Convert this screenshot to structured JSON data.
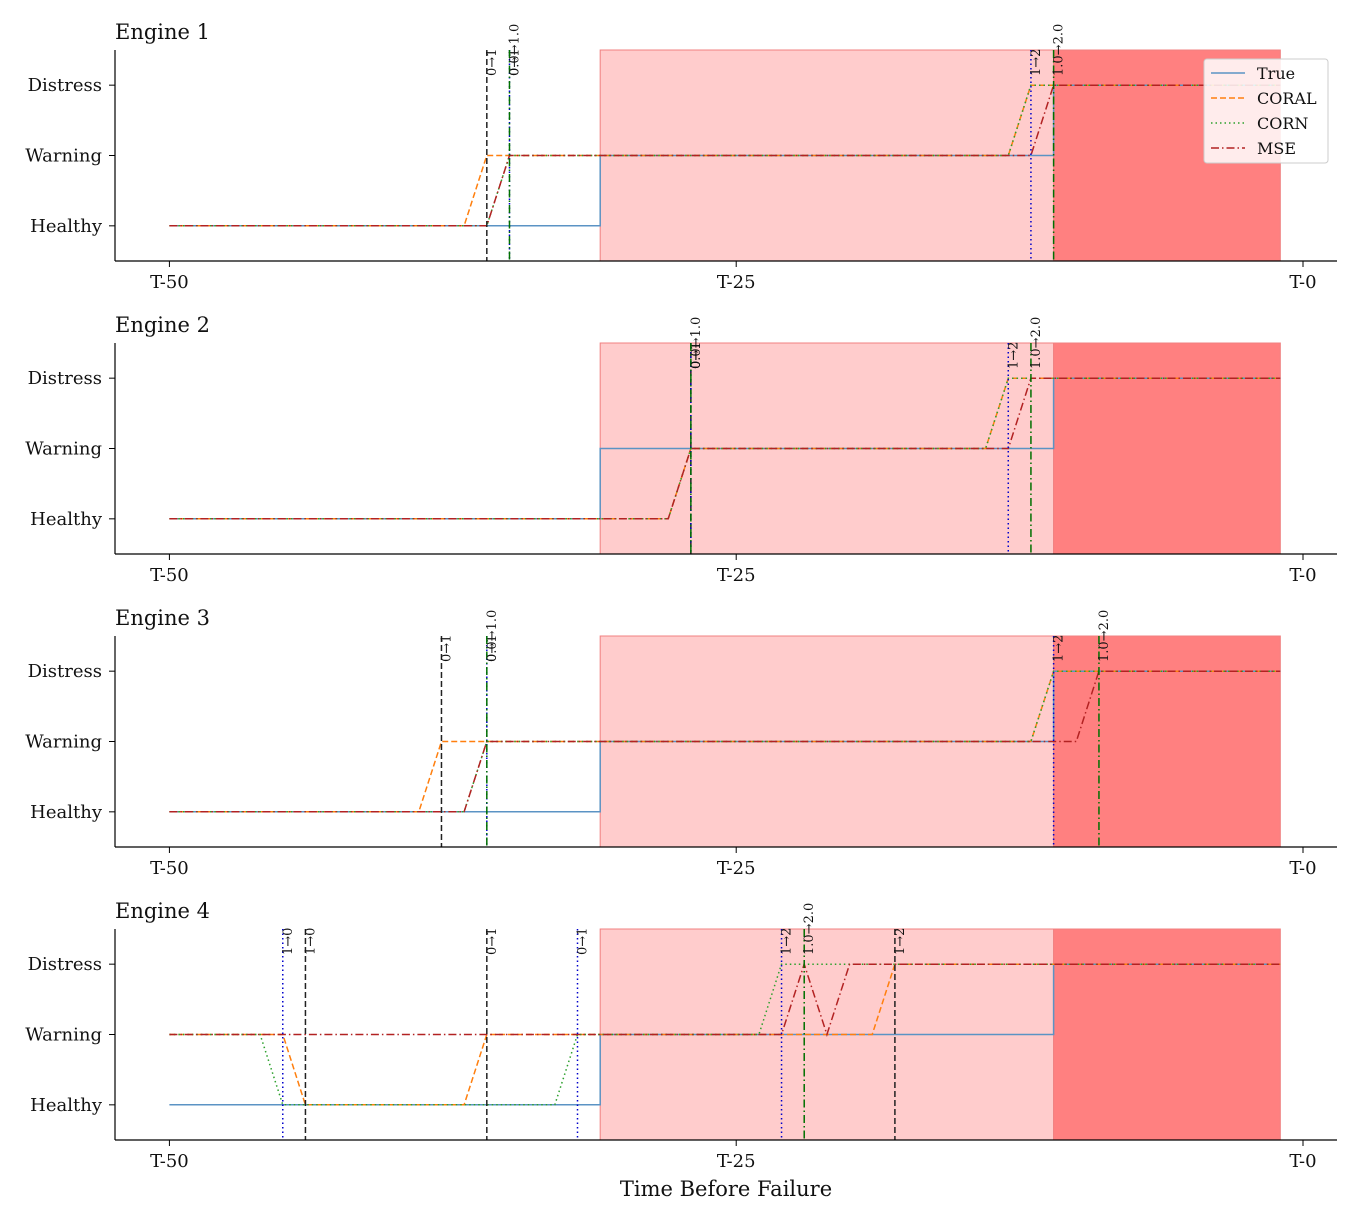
{
  "chart_data": [
    {
      "type": "line",
      "title": "Engine 1",
      "xlim": [
        -52.4,
        1.5
      ],
      "xticks": [
        {
          "value": -50,
          "label": "T-50"
        },
        {
          "value": -25,
          "label": "T-25"
        },
        {
          "value": 0,
          "label": "T-0"
        }
      ],
      "ylim": [
        -0.5,
        2.5
      ],
      "yticks": [
        {
          "value": 0,
          "label": "Healthy"
        },
        {
          "value": 1,
          "label": "Warning"
        },
        {
          "value": 2,
          "label": "Distress"
        }
      ],
      "regions": [
        {
          "x0": -31,
          "x1": -11,
          "color": "#ffcccc"
        },
        {
          "x0": -11,
          "x1": -1,
          "color": "#ff8080"
        }
      ],
      "series": [
        {
          "name": "True",
          "color": "#5b93c4",
          "dash": "solid",
          "x": [
            -50,
            -31,
            -31,
            -11,
            -11,
            -1
          ],
          "values": [
            0,
            0,
            1,
            1,
            2,
            2
          ]
        },
        {
          "name": "CORAL",
          "color": "#ff7f0e",
          "dash": "dashed",
          "x": [
            -50,
            -37,
            -36,
            -13,
            -12,
            -1
          ],
          "values": [
            0,
            0,
            1,
            1,
            2,
            2
          ]
        },
        {
          "name": "CORN",
          "color": "#2ca02c",
          "dash": "dotted",
          "x": [
            -50,
            -36,
            -35,
            -13,
            -12,
            -1
          ],
          "values": [
            0,
            0,
            1,
            1,
            2,
            2
          ]
        },
        {
          "name": "MSE",
          "color": "#b22222",
          "dash": "dashdot",
          "x": [
            -50,
            -36,
            -35,
            -12,
            -11,
            -1
          ],
          "values": [
            0,
            0,
            1,
            1,
            2,
            2
          ]
        }
      ],
      "markers": [
        {
          "x": -36,
          "label": "0→1",
          "color": "#222222",
          "dash": "dashed"
        },
        {
          "x": -35,
          "label": "0→1",
          "color": "#0000cc",
          "dash": "dotted"
        },
        {
          "x": -35,
          "label": "0.0→1.0",
          "color": "#007000",
          "dash": "dashdot"
        },
        {
          "x": -12,
          "label": "1→2",
          "color": "#0000cc",
          "dash": "dotted"
        },
        {
          "x": -11,
          "label": "1.0→2.0",
          "color": "#007000",
          "dash": "dashdot"
        }
      ],
      "legend": "upper right"
    },
    {
      "type": "line",
      "title": "Engine 2",
      "xlim": [
        -52.4,
        1.5
      ],
      "xticks": [
        {
          "value": -50,
          "label": "T-50"
        },
        {
          "value": -25,
          "label": "T-25"
        },
        {
          "value": 0,
          "label": "T-0"
        }
      ],
      "ylim": [
        -0.5,
        2.5
      ],
      "yticks": [
        {
          "value": 0,
          "label": "Healthy"
        },
        {
          "value": 1,
          "label": "Warning"
        },
        {
          "value": 2,
          "label": "Distress"
        }
      ],
      "regions": [
        {
          "x0": -31,
          "x1": -11,
          "color": "#ffcccc"
        },
        {
          "x0": -11,
          "x1": -1,
          "color": "#ff8080"
        }
      ],
      "series": [
        {
          "color": "#5b93c4",
          "dash": "solid",
          "x": [
            -50,
            -31,
            -31,
            -11,
            -11,
            -1
          ],
          "values": [
            0,
            0,
            1,
            1,
            2,
            2
          ]
        },
        {
          "color": "#ff7f0e",
          "dash": "dashed",
          "x": [
            -50,
            -28,
            -27,
            -14,
            -13,
            -1
          ],
          "values": [
            0,
            0,
            1,
            1,
            2,
            2
          ]
        },
        {
          "color": "#2ca02c",
          "dash": "dotted",
          "x": [
            -50,
            -28,
            -27,
            -14,
            -13,
            -1
          ],
          "values": [
            0,
            0,
            1,
            1,
            2,
            2
          ]
        },
        {
          "color": "#b22222",
          "dash": "dashdot",
          "x": [
            -50,
            -28,
            -27,
            -13,
            -12,
            -1
          ],
          "values": [
            0,
            0,
            1,
            1,
            2,
            2
          ]
        }
      ],
      "markers": [
        {
          "x": -27,
          "label": "0→1",
          "color": "#222222",
          "dash": "dashed"
        },
        {
          "x": -27,
          "label": "0→1",
          "color": "#0000cc",
          "dash": "dotted"
        },
        {
          "x": -27,
          "label": "0.0→1.0",
          "color": "#007000",
          "dash": "dashdot"
        },
        {
          "x": -13,
          "label": "1→2",
          "color": "#0000cc",
          "dash": "dotted"
        },
        {
          "x": -12,
          "label": "1.0→2.0",
          "color": "#007000",
          "dash": "dashdot"
        }
      ]
    },
    {
      "type": "line",
      "title": "Engine 3",
      "xlim": [
        -52.4,
        1.5
      ],
      "xticks": [
        {
          "value": -50,
          "label": "T-50"
        },
        {
          "value": -25,
          "label": "T-25"
        },
        {
          "value": 0,
          "label": "T-0"
        }
      ],
      "ylim": [
        -0.5,
        2.5
      ],
      "yticks": [
        {
          "value": 0,
          "label": "Healthy"
        },
        {
          "value": 1,
          "label": "Warning"
        },
        {
          "value": 2,
          "label": "Distress"
        }
      ],
      "regions": [
        {
          "x0": -31,
          "x1": -11,
          "color": "#ffcccc"
        },
        {
          "x0": -11,
          "x1": -1,
          "color": "#ff8080"
        }
      ],
      "series": [
        {
          "color": "#5b93c4",
          "dash": "solid",
          "x": [
            -50,
            -31,
            -31,
            -11,
            -11,
            -1
          ],
          "values": [
            0,
            0,
            1,
            1,
            2,
            2
          ]
        },
        {
          "color": "#ff7f0e",
          "dash": "dashed",
          "x": [
            -50,
            -39,
            -38,
            -12,
            -11,
            -1
          ],
          "values": [
            0,
            0,
            1,
            1,
            2,
            2
          ]
        },
        {
          "color": "#2ca02c",
          "dash": "dotted",
          "x": [
            -50,
            -37,
            -36,
            -12,
            -11,
            -1
          ],
          "values": [
            0,
            0,
            1,
            1,
            2,
            2
          ]
        },
        {
          "color": "#b22222",
          "dash": "dashdot",
          "x": [
            -50,
            -37,
            -36,
            -10,
            -9,
            -1
          ],
          "values": [
            0,
            0,
            1,
            1,
            2,
            2
          ]
        }
      ],
      "markers": [
        {
          "x": -38,
          "label": "0→1",
          "color": "#222222",
          "dash": "dashed"
        },
        {
          "x": -36,
          "label": "0→1",
          "color": "#0000cc",
          "dash": "dotted"
        },
        {
          "x": -36,
          "label": "0.0→1.0",
          "color": "#007000",
          "dash": "dashdot"
        },
        {
          "x": -11,
          "label": "1→2",
          "color": "#0000cc",
          "dash": "dotted"
        },
        {
          "x": -9,
          "label": "1.0→2.0",
          "color": "#007000",
          "dash": "dashdot"
        }
      ]
    },
    {
      "type": "line",
      "title": "Engine 4",
      "xlabel": "Time Before Failure",
      "xlim": [
        -52.4,
        1.5
      ],
      "xticks": [
        {
          "value": -50,
          "label": "T-50"
        },
        {
          "value": -25,
          "label": "T-25"
        },
        {
          "value": 0,
          "label": "T-0"
        }
      ],
      "ylim": [
        -0.5,
        2.5
      ],
      "yticks": [
        {
          "value": 0,
          "label": "Healthy"
        },
        {
          "value": 1,
          "label": "Warning"
        },
        {
          "value": 2,
          "label": "Distress"
        }
      ],
      "regions": [
        {
          "x0": -31,
          "x1": -11,
          "color": "#ffcccc"
        },
        {
          "x0": -11,
          "x1": -1,
          "color": "#ff8080"
        }
      ],
      "series": [
        {
          "color": "#5b93c4",
          "dash": "solid",
          "x": [
            -50,
            -31,
            -31,
            -11,
            -11,
            -1
          ],
          "values": [
            0,
            0,
            1,
            1,
            2,
            2
          ]
        },
        {
          "color": "#ff7f0e",
          "dash": "dashed",
          "x": [
            -50,
            -45,
            -44,
            -37,
            -36,
            -19,
            -18,
            -1
          ],
          "values": [
            1,
            1,
            0,
            0,
            1,
            1,
            2,
            2
          ]
        },
        {
          "color": "#2ca02c",
          "dash": "dotted",
          "x": [
            -50,
            -46,
            -45,
            -33,
            -32,
            -24,
            -23,
            -1
          ],
          "values": [
            1,
            1,
            0,
            0,
            1,
            1,
            2,
            2
          ]
        },
        {
          "color": "#b22222",
          "dash": "dashdot",
          "x": [
            -50,
            -23,
            -22,
            -21,
            -20,
            -1
          ],
          "values": [
            1,
            1,
            2,
            1,
            2,
            2
          ]
        }
      ],
      "markers": [
        {
          "x": -45,
          "label": "1→0",
          "color": "#0000cc",
          "dash": "dotted"
        },
        {
          "x": -44,
          "label": "1→0",
          "color": "#222222",
          "dash": "dashed"
        },
        {
          "x": -36,
          "label": "0→1",
          "color": "#222222",
          "dash": "dashed"
        },
        {
          "x": -32,
          "label": "0→1",
          "color": "#0000cc",
          "dash": "dotted"
        },
        {
          "x": -23,
          "label": "1→2",
          "color": "#0000cc",
          "dash": "dotted"
        },
        {
          "x": -22,
          "label": "1.0→2.0",
          "color": "#007000",
          "dash": "dashdot"
        },
        {
          "x": -18,
          "label": "1→2",
          "color": "#222222",
          "dash": "dashed"
        }
      ]
    }
  ]
}
